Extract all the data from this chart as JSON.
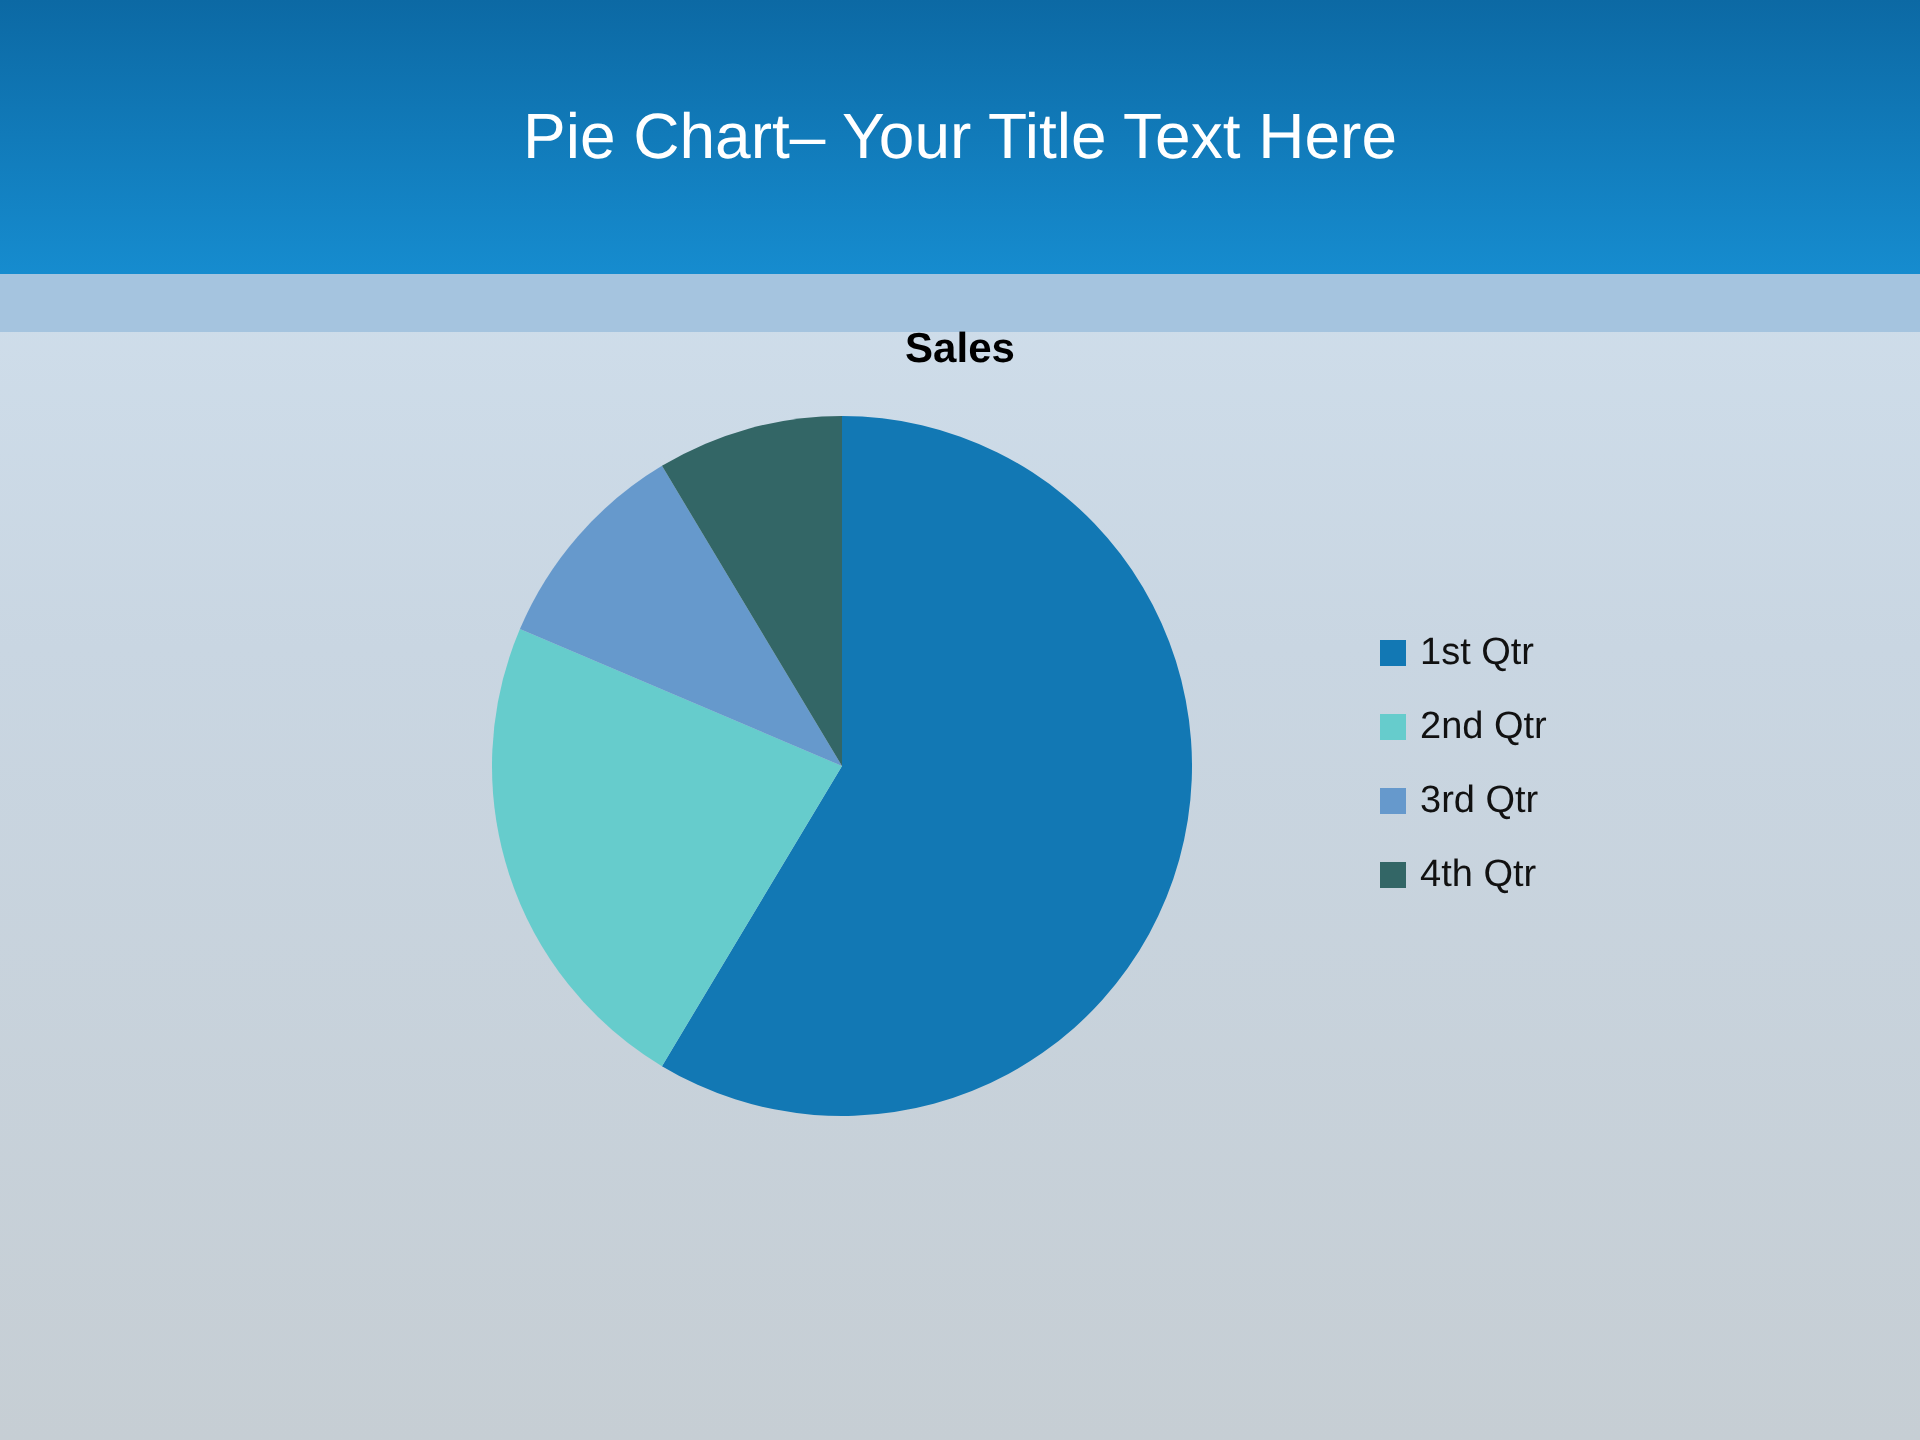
{
  "chart_data": {
    "type": "pie",
    "title": "Pie Chart– Your Title Text Here",
    "subtitle": "Sales",
    "categories": [
      "1st Qtr",
      "2nd Qtr",
      "3rd Qtr",
      "4th Qtr"
    ],
    "values": [
      58.6,
      22.8,
      10.0,
      8.6
    ],
    "colors": [
      "#1278b4",
      "#66cccc",
      "#6699cc",
      "#336666"
    ],
    "legend": "right"
  }
}
